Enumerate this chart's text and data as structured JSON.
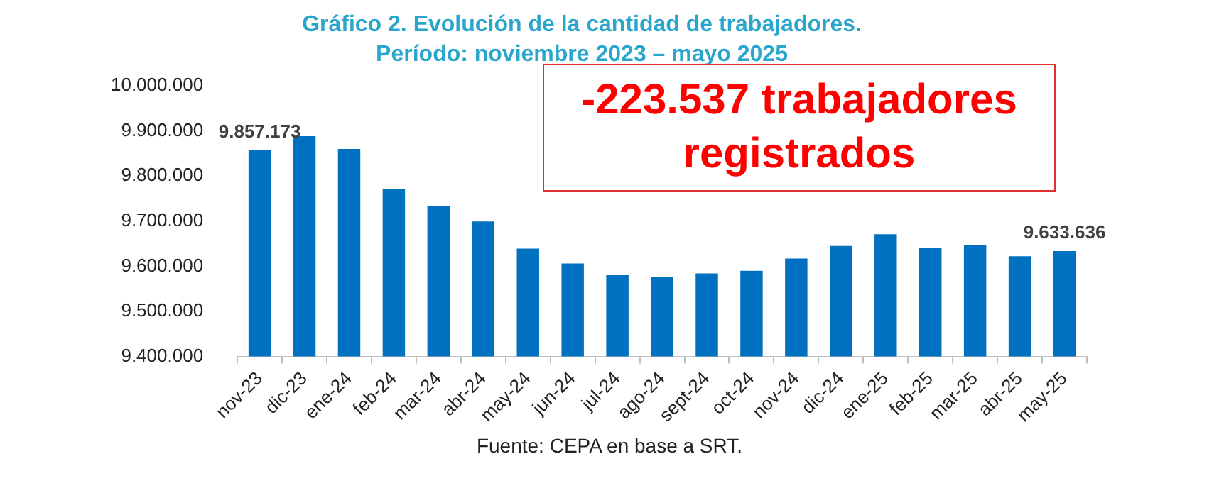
{
  "chart_data": {
    "type": "bar",
    "title": "Gráfico 2. Evolución de la cantidad de trabajadores.",
    "subtitle": "Período: noviembre 2023 – mayo 2025",
    "categories": [
      "nov-23",
      "dic-23",
      "ene-24",
      "feb-24",
      "mar-24",
      "abr-24",
      "may-24",
      "jun-24",
      "jul-24",
      "ago-24",
      "sept-24",
      "oct-24",
      "nov-24",
      "dic-24",
      "ene-25",
      "feb-25",
      "mar-25",
      "abr-25",
      "may-25"
    ],
    "values": [
      9857173,
      9888000,
      9860000,
      9771000,
      9734000,
      9699000,
      9639000,
      9606000,
      9580000,
      9577000,
      9584000,
      9590000,
      9617000,
      9645000,
      9671000,
      9640000,
      9647000,
      9622000,
      9633636
    ],
    "value_labels": [
      "9.857.173",
      null,
      null,
      null,
      null,
      null,
      null,
      null,
      null,
      null,
      null,
      null,
      null,
      null,
      null,
      null,
      null,
      null,
      "9.633.636"
    ],
    "color": "#0070c0",
    "ylim": [
      9400000,
      10000000
    ],
    "yticks": [
      {
        "value": 9400000,
        "label": "9.400.000"
      },
      {
        "value": 9500000,
        "label": "9.500.000"
      },
      {
        "value": 9600000,
        "label": "9.600.000"
      },
      {
        "value": 9700000,
        "label": "9.700.000"
      },
      {
        "value": 9800000,
        "label": "9.800.000"
      },
      {
        "value": 9900000,
        "label": "9.900.000"
      },
      {
        "value": 10000000,
        "label": "10.000.000"
      }
    ],
    "annotations": [
      "-223.537 trabajadores registrados",
      "Fuente: CEPA en base a SRT."
    ]
  }
}
